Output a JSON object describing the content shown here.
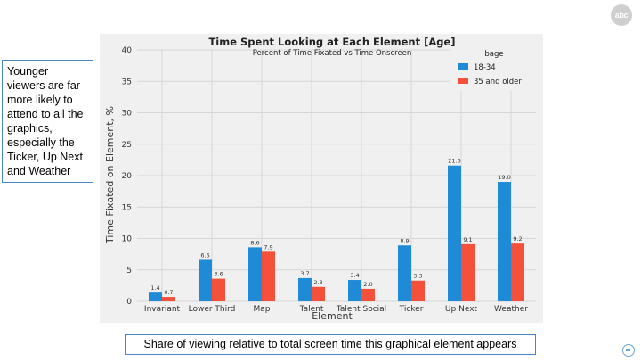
{
  "logo_text": "abc",
  "callout": "Younger viewers are far more likely to attend to all the graphics, especially the Ticker, Up Next and Weather",
  "caption": "Share of viewing relative to total screen time this graphical element appears",
  "chart_data": {
    "type": "bar",
    "title": "Time Spent Looking at Each Element [Age]",
    "subtitle": "Percent of Time Fixated vs Time Onscreen",
    "xlabel": "Element",
    "ylabel": "Time Fixated on Element, %",
    "ylim": [
      0,
      40
    ],
    "yticks": [
      0,
      5,
      10,
      15,
      20,
      25,
      30,
      35,
      40
    ],
    "grid": true,
    "legend_title": "bage",
    "legend_position": "top-right",
    "categories": [
      "Invariant",
      "Lower Third",
      "Map",
      "Talent",
      "Talent Social",
      "Ticker",
      "Up Next",
      "Weather"
    ],
    "series": [
      {
        "name": "18-34",
        "color": "#1f8ad6",
        "values": [
          1.4,
          6.6,
          8.6,
          3.7,
          3.4,
          8.9,
          21.6,
          19.0
        ],
        "labels": [
          "1.4",
          "6.6",
          "8.6",
          "3.7",
          "3.4",
          "8.9",
          "21.6",
          "19.0"
        ]
      },
      {
        "name": "35 and older",
        "color": "#f5503a",
        "values": [
          0.7,
          3.6,
          7.9,
          2.3,
          2.0,
          3.3,
          9.1,
          9.2
        ],
        "labels": [
          "0.7",
          "3.6",
          "7.9",
          "2.3",
          "2.0",
          "3.3",
          "9.1",
          "9.2"
        ]
      }
    ]
  }
}
